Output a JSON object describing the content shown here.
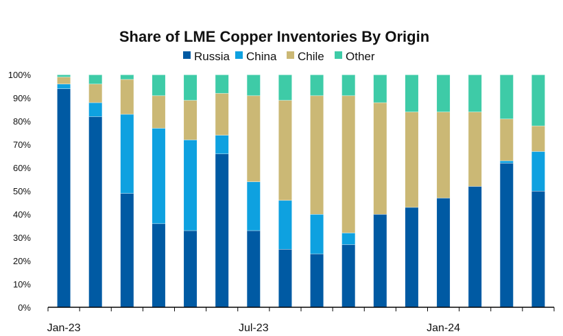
{
  "chart_data": {
    "type": "bar",
    "stacked": true,
    "title": "Share of LME Copper Inventories By Origin",
    "legend_position": "top",
    "categories": [
      "Jan-23",
      "Feb-23",
      "Mar-23",
      "Apr-23",
      "May-23",
      "Jun-23",
      "Jul-23",
      "Aug-23",
      "Sep-23",
      "Oct-23",
      "Nov-23",
      "Dec-23",
      "Jan-24",
      "Feb-24",
      "Mar-24",
      "Apr-24"
    ],
    "x_tick_labels": [
      "Jan-23",
      "",
      "",
      "",
      "",
      "",
      "Jul-23",
      "",
      "",
      "",
      "",
      "",
      "Jan-24",
      "",
      "",
      ""
    ],
    "ylim": [
      0,
      100
    ],
    "y_tick_labels": [
      "0%",
      "10%",
      "20%",
      "30%",
      "40%",
      "50%",
      "60%",
      "70%",
      "80%",
      "90%",
      "100%"
    ],
    "grid": false,
    "series": [
      {
        "name": "Russia",
        "color": "#005aa3",
        "values": [
          94,
          82,
          49,
          36,
          33,
          66,
          33,
          25,
          23,
          27,
          40,
          43,
          47,
          52,
          62,
          50
        ]
      },
      {
        "name": "China",
        "color": "#0ea1e0",
        "values": [
          2,
          6,
          34,
          41,
          39,
          8,
          21,
          21,
          17,
          5,
          0,
          0,
          0,
          0,
          1,
          17
        ]
      },
      {
        "name": "Chile",
        "color": "#cbb875",
        "values": [
          3,
          8,
          15,
          14,
          17,
          18,
          37,
          43,
          51,
          59,
          48,
          41,
          37,
          32,
          18,
          11
        ]
      },
      {
        "name": "Other",
        "color": "#3ecba7",
        "values": [
          1,
          4,
          2,
          9,
          11,
          8,
          9,
          11,
          9,
          9,
          12,
          16,
          16,
          16,
          19,
          22
        ]
      }
    ]
  }
}
